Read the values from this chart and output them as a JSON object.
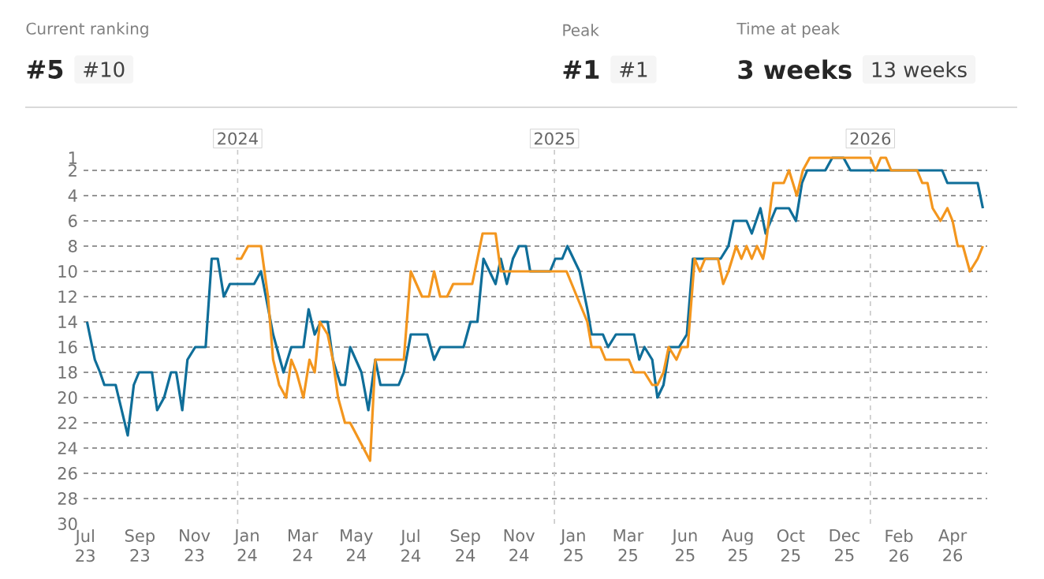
{
  "chart_data": {
    "type": "line",
    "annotations": [
      "Current ranking",
      "#5",
      "#10",
      "Peak",
      "#1",
      "#1",
      "Time at peak",
      "3 weeks",
      "13 weeks"
    ],
    "series": [
      {
        "color": "#0f6e99",
        "x": [
          "2023-07-11",
          "2023-07-20",
          "2023-07-26",
          "2023-07-31",
          "2023-08-13",
          "2023-08-27",
          "2023-09-03",
          "2023-09-09",
          "2023-09-24",
          "2023-09-30",
          "2023-10-08",
          "2023-10-16",
          "2023-10-22",
          "2023-10-29",
          "2023-11-04",
          "2023-11-13",
          "2023-11-25",
          "2023-12-02",
          "2023-12-09",
          "2023-12-16",
          "2023-12-23",
          "2024-01-20",
          "2024-01-28",
          "2024-02-11",
          "2024-02-23",
          "2024-03-03",
          "2024-03-17",
          "2024-03-23",
          "2024-03-30",
          "2024-04-06",
          "2024-04-14",
          "2024-04-20",
          "2024-04-29",
          "2024-05-04",
          "2024-05-10",
          "2024-05-23",
          "2024-05-31",
          "2024-06-08",
          "2024-06-14",
          "2024-07-05",
          "2024-07-11",
          "2024-07-19",
          "2024-08-07",
          "2024-08-15",
          "2024-08-22",
          "2024-09-18",
          "2024-09-26",
          "2024-10-04",
          "2024-10-11",
          "2024-10-25",
          "2024-10-31",
          "2024-11-07",
          "2024-11-14",
          "2024-11-21",
          "2024-11-29",
          "2024-12-04",
          "2024-12-27",
          "2025-01-02",
          "2025-01-10",
          "2025-01-16",
          "2025-01-30",
          "2025-02-08",
          "2025-02-13",
          "2025-02-26",
          "2025-03-04",
          "2025-03-13",
          "2025-04-03",
          "2025-04-09",
          "2025-04-15",
          "2025-04-24",
          "2025-04-30",
          "2025-05-07",
          "2025-05-14",
          "2025-05-25",
          "2025-06-03",
          "2025-06-10",
          "2025-06-18",
          "2025-07-12",
          "2025-07-21",
          "2025-07-27",
          "2025-08-11",
          "2025-08-17",
          "2025-08-27",
          "2025-09-02",
          "2025-09-14",
          "2025-09-29",
          "2025-10-07",
          "2025-10-14",
          "2025-10-20",
          "2025-11-10",
          "2025-11-18",
          "2025-12-01",
          "2025-12-09",
          "2026-01-13",
          "2026-02-24",
          "2026-03-25",
          "2026-03-31",
          "2026-05-05",
          "2026-05-11"
        ],
        "values": [
          14,
          17,
          18,
          19,
          19,
          23,
          19,
          18,
          18,
          21,
          20,
          18,
          18,
          21,
          17,
          16,
          16,
          9,
          9,
          12,
          11,
          11,
          10,
          15,
          18,
          16,
          16,
          13,
          15,
          14,
          14,
          17,
          19,
          19,
          16,
          18,
          21,
          17,
          19,
          19,
          18,
          15,
          15,
          17,
          16,
          16,
          14,
          14,
          9,
          11,
          9,
          11,
          9,
          8,
          8,
          10,
          10,
          9,
          9,
          8,
          10,
          13,
          15,
          15,
          16,
          15,
          15,
          17,
          16,
          17,
          20,
          19,
          16,
          16,
          15,
          9,
          9,
          9,
          8,
          6,
          6,
          7,
          5,
          7,
          5,
          5,
          6,
          3,
          2,
          2,
          1,
          1,
          2,
          2,
          2,
          2,
          3,
          3,
          5
        ]
      },
      {
        "color": "#f3961e",
        "x": [
          "2023-12-30",
          "2024-01-05",
          "2024-01-13",
          "2024-01-28",
          "2024-02-05",
          "2024-02-11",
          "2024-02-18",
          "2024-02-26",
          "2024-03-03",
          "2024-03-09",
          "2024-03-17",
          "2024-03-24",
          "2024-03-30",
          "2024-04-05",
          "2024-04-14",
          "2024-04-20",
          "2024-04-26",
          "2024-05-04",
          "2024-05-10",
          "2024-06-02",
          "2024-06-08",
          "2024-07-11",
          "2024-07-19",
          "2024-08-01",
          "2024-08-09",
          "2024-08-15",
          "2024-08-22",
          "2024-08-30",
          "2024-09-06",
          "2024-09-28",
          "2024-10-10",
          "2024-10-25",
          "2024-10-31",
          "2025-01-15",
          "2025-01-27",
          "2025-02-08",
          "2025-02-13",
          "2025-02-23",
          "2025-03-01",
          "2025-03-28",
          "2025-04-03",
          "2025-04-15",
          "2025-04-24",
          "2025-04-30",
          "2025-05-07",
          "2025-05-13",
          "2025-05-22",
          "2025-05-28",
          "2025-06-04",
          "2025-06-12",
          "2025-06-18",
          "2025-06-24",
          "2025-07-09",
          "2025-07-15",
          "2025-07-21",
          "2025-07-30",
          "2025-08-05",
          "2025-08-11",
          "2025-08-17",
          "2025-08-23",
          "2025-08-30",
          "2025-09-02",
          "2025-09-11",
          "2025-09-23",
          "2025-09-29",
          "2025-10-08",
          "2025-10-15",
          "2025-10-23",
          "2026-01-01",
          "2026-01-07",
          "2026-01-13",
          "2026-01-19",
          "2026-01-25",
          "2026-02-24",
          "2026-03-02",
          "2026-03-08",
          "2026-03-14",
          "2026-03-23",
          "2026-03-31",
          "2026-04-06",
          "2026-04-12",
          "2026-04-18",
          "2026-04-26",
          "2026-05-05",
          "2026-05-11"
        ],
        "values": [
          9,
          9,
          8,
          8,
          12,
          17,
          19,
          20,
          17,
          18,
          20,
          17,
          18,
          14,
          15,
          17,
          20,
          22,
          22,
          25,
          17,
          17,
          10,
          12,
          12,
          10,
          12,
          12,
          11,
          11,
          7,
          7,
          10,
          10,
          12,
          14,
          16,
          16,
          17,
          17,
          18,
          18,
          19,
          19,
          18,
          16,
          17,
          16,
          16,
          9,
          10,
          9,
          9,
          11,
          10,
          8,
          9,
          8,
          9,
          8,
          9,
          8,
          3,
          3,
          2,
          4,
          2,
          1,
          1,
          2,
          1,
          1,
          2,
          2,
          3,
          3,
          5,
          6,
          5,
          6,
          8,
          8,
          10,
          9,
          8
        ]
      }
    ],
    "xlim": [
      "2023-07-07",
      "2026-05-16"
    ],
    "xticks": [
      {
        "value": "2023-07-09",
        "label": "Jul 23"
      },
      {
        "value": "2023-09-10",
        "label": "Sep 23"
      },
      {
        "value": "2023-11-12",
        "label": "Nov 23"
      },
      {
        "value": "2024-01-12",
        "label": "Jan 24"
      },
      {
        "value": "2024-03-16",
        "label": "Mar 24"
      },
      {
        "value": "2024-05-17",
        "label": "May 24"
      },
      {
        "value": "2024-07-19",
        "label": "Jul 24"
      },
      {
        "value": "2024-09-20",
        "label": "Sep 24"
      },
      {
        "value": "2024-11-21",
        "label": "Nov 24"
      },
      {
        "value": "2025-01-23",
        "label": "Jan 25"
      },
      {
        "value": "2025-03-27",
        "label": "Mar 25"
      },
      {
        "value": "2025-06-01",
        "label": "Jun 25"
      },
      {
        "value": "2025-08-01",
        "label": "Aug 25"
      },
      {
        "value": "2025-10-01",
        "label": "Oct 25"
      },
      {
        "value": "2025-12-02",
        "label": "Dec 25"
      },
      {
        "value": "2026-02-03",
        "label": "Feb 26"
      },
      {
        "value": "2026-04-06",
        "label": "Apr 26"
      }
    ],
    "ylim": [
      30,
      1
    ],
    "yticks": [
      1,
      2,
      4,
      6,
      8,
      10,
      12,
      14,
      16,
      18,
      20,
      22,
      24,
      26,
      28,
      30
    ],
    "grid": "y",
    "line_style": "solid",
    "ref_lines": [
      {
        "axis": "x",
        "value": "2024-01-01",
        "label": "2024",
        "color": "#c8c8c8",
        "line_style": "dashed"
      },
      {
        "axis": "x",
        "value": "2025-01-01",
        "label": "2025",
        "color": "#c8c8c8",
        "line_style": "dashed"
      },
      {
        "axis": "x",
        "value": "2026-01-01",
        "label": "2026",
        "color": "#c8c8c8",
        "line_style": "dashed"
      }
    ]
  }
}
